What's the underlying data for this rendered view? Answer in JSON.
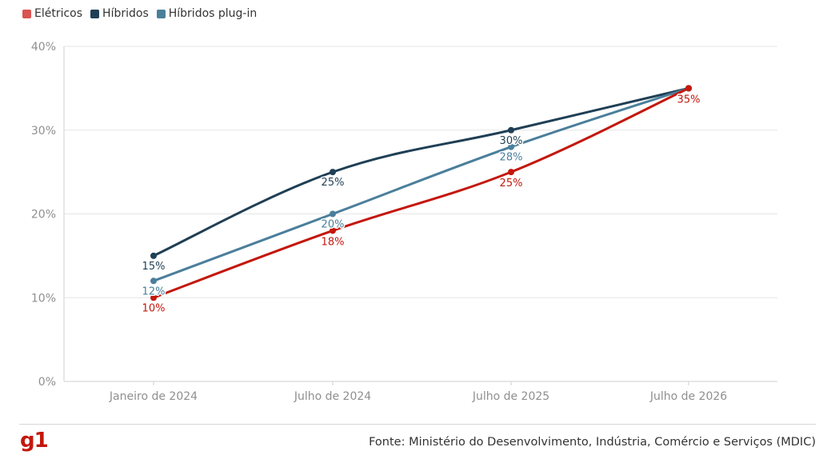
{
  "legend": [
    {
      "label": "Elétricos",
      "color": "#d9534f"
    },
    {
      "label": "Híbridos",
      "color": "#1f3f55"
    },
    {
      "label": "Híbridos plug-in",
      "color": "#4a7f9b"
    }
  ],
  "chart_data": {
    "type": "line",
    "categories": [
      "Janeiro de 2024",
      "Julho de 2024",
      "Julho de 2025",
      "Julho de 2026"
    ],
    "y_ticks": [
      "0%",
      "10%",
      "20%",
      "30%",
      "40%"
    ],
    "ylim": [
      0,
      40
    ],
    "grid": true,
    "legend_position": "top-left",
    "series": [
      {
        "name": "Elétricos",
        "color": "#c4170c",
        "values": [
          10,
          18,
          25,
          35
        ],
        "labels": [
          "10%",
          "18%",
          "25%",
          "35%"
        ]
      },
      {
        "name": "Híbridos",
        "color": "#1f3f55",
        "values": [
          15,
          25,
          30,
          35
        ],
        "labels": [
          "15%",
          "25%",
          "30%",
          ""
        ]
      },
      {
        "name": "Híbridos plug-in",
        "color": "#4a7f9b",
        "values": [
          12,
          20,
          28,
          35
        ],
        "labels": [
          "12%",
          "20%",
          "28%",
          ""
        ]
      }
    ]
  },
  "footer": {
    "logo": "g1",
    "source": "Fonte: Ministério do Desenvolvimento, Indústria, Comércio e Serviços (MDIC)"
  }
}
